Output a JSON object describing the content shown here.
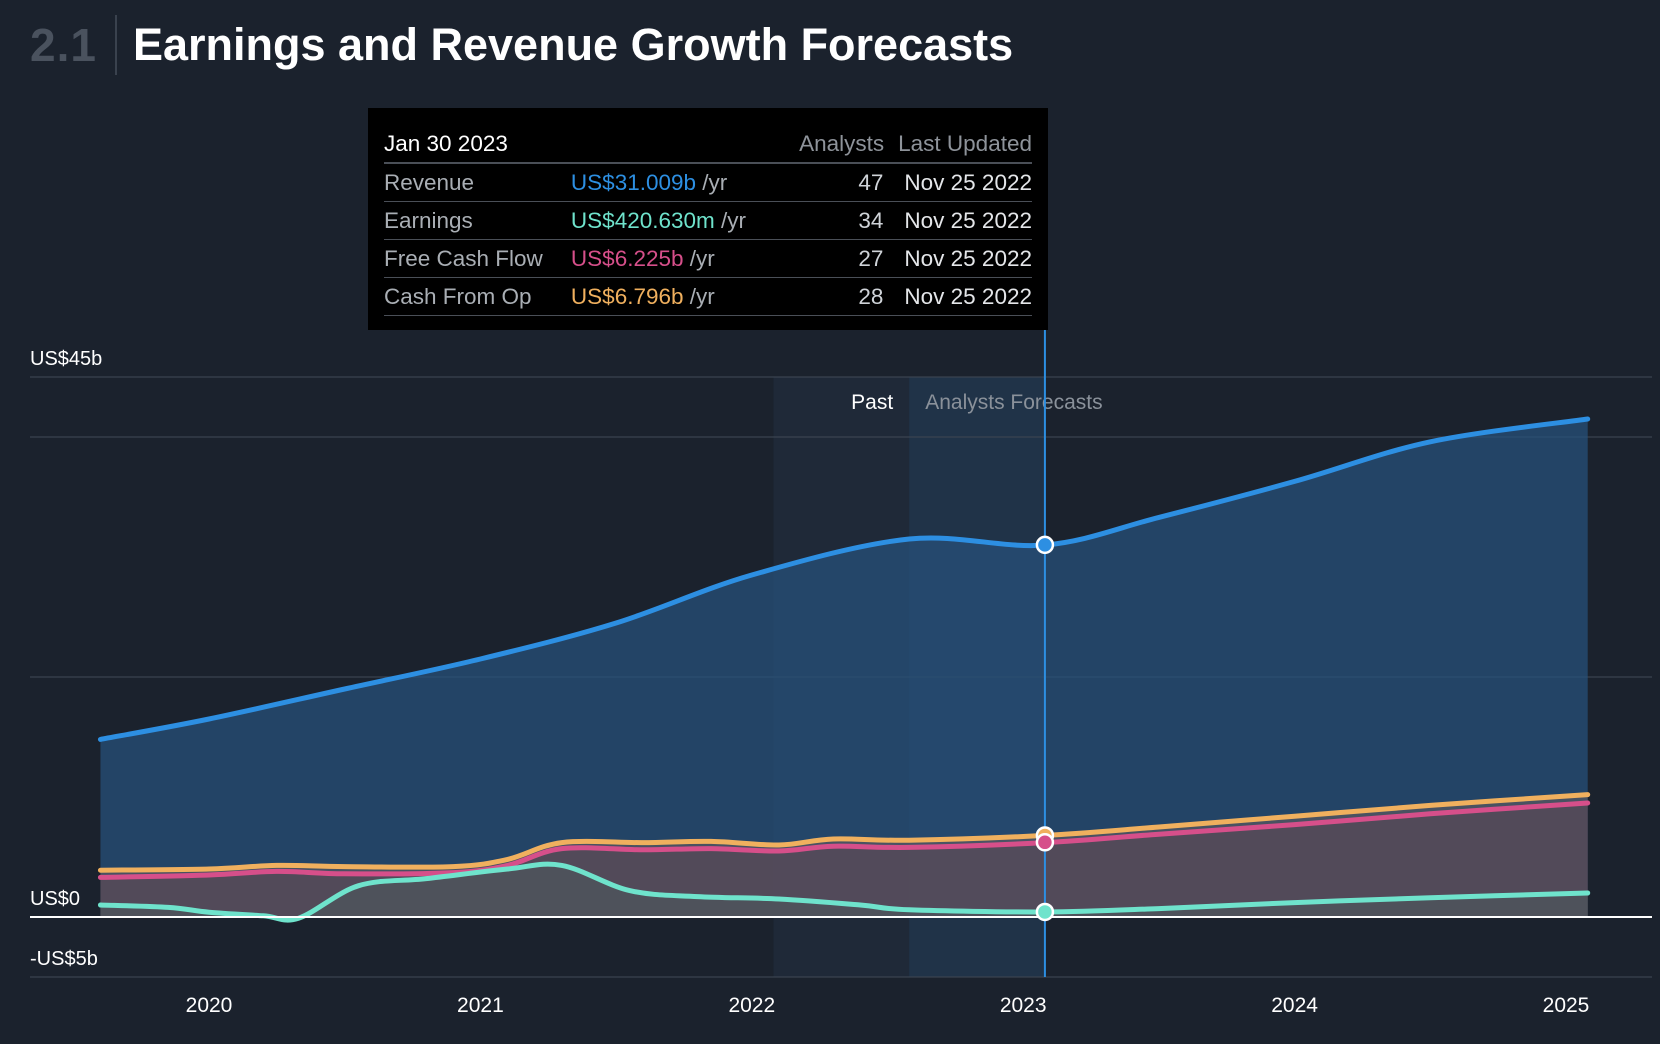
{
  "header": {
    "section_number": "2.1",
    "title": "Earnings and Revenue Growth Forecasts"
  },
  "tooltip": {
    "date": "Jan 30 2023",
    "col_analysts": "Analysts",
    "col_updated": "Last Updated",
    "rows": [
      {
        "name": "Revenue",
        "value": "US$31.009b",
        "unit": " /yr",
        "analysts": "47",
        "updated": "Nov 25 2022",
        "color": "#2d8fe2"
      },
      {
        "name": "Earnings",
        "value": "US$420.630m",
        "unit": " /yr",
        "analysts": "34",
        "updated": "Nov 25 2022",
        "color": "#6fe3cc"
      },
      {
        "name": "Free Cash Flow",
        "value": "US$6.225b",
        "unit": " /yr",
        "analysts": "27",
        "updated": "Nov 25 2022",
        "color": "#d64f8a"
      },
      {
        "name": "Cash From Op",
        "value": "US$6.796b",
        "unit": " /yr",
        "analysts": "28",
        "updated": "Nov 25 2022",
        "color": "#f0b05e"
      }
    ]
  },
  "chart_data": {
    "type": "area",
    "ylim": [
      -5,
      45
    ],
    "y_tick_labels": [
      {
        "value": 45,
        "label": "US$45b"
      },
      {
        "value": 0,
        "label": "US$0"
      },
      {
        "value": -5,
        "label": "-US$5b"
      }
    ],
    "gridlines": [
      40,
      20
    ],
    "x_ticks": [
      {
        "value": 2020,
        "label": "2020"
      },
      {
        "value": 2021,
        "label": "2021"
      },
      {
        "value": 2022,
        "label": "2022"
      },
      {
        "value": 2023,
        "label": "2023"
      },
      {
        "value": 2024,
        "label": "2024"
      },
      {
        "value": 2025,
        "label": "2025"
      }
    ],
    "regions": {
      "past_label": "Past",
      "forecast_label": "Analysts Forecasts",
      "past_shade_start": 2022.08,
      "forecast_start": 2022.58
    },
    "cursor_x": 2023.08,
    "series": [
      {
        "key": "revenue",
        "color": "#2d8fe2",
        "fill": "#27507a",
        "marker_value": 31.009,
        "points": [
          [
            2019.6,
            14.8
          ],
          [
            2020,
            16.5
          ],
          [
            2020.5,
            19
          ],
          [
            2021,
            21.5
          ],
          [
            2021.5,
            24.5
          ],
          [
            2022,
            28.5
          ],
          [
            2022.58,
            31.5
          ],
          [
            2023.08,
            31.0
          ],
          [
            2023.5,
            33.3
          ],
          [
            2024,
            36.3
          ],
          [
            2024.5,
            39.6
          ],
          [
            2025.08,
            41.5
          ]
        ]
      },
      {
        "key": "cash_from_op",
        "color": "#f0b05e",
        "fill": "#6a5f5c",
        "marker_value": 6.796,
        "points": [
          [
            2019.6,
            3.9
          ],
          [
            2020,
            4.0
          ],
          [
            2020.25,
            4.3
          ],
          [
            2020.5,
            4.2
          ],
          [
            2020.9,
            4.2
          ],
          [
            2021.1,
            4.8
          ],
          [
            2021.3,
            6.2
          ],
          [
            2021.6,
            6.2
          ],
          [
            2021.85,
            6.3
          ],
          [
            2022.1,
            6.0
          ],
          [
            2022.3,
            6.5
          ],
          [
            2022.58,
            6.4
          ],
          [
            2023.08,
            6.8
          ],
          [
            2023.5,
            7.5
          ],
          [
            2024,
            8.4
          ],
          [
            2024.5,
            9.3
          ],
          [
            2025.08,
            10.2
          ]
        ]
      },
      {
        "key": "free_cash_flow",
        "color": "#d64f8a",
        "fill": "#5a4453",
        "marker_value": 6.225,
        "points": [
          [
            2019.6,
            3.3
          ],
          [
            2020,
            3.5
          ],
          [
            2020.25,
            3.8
          ],
          [
            2020.5,
            3.6
          ],
          [
            2020.9,
            3.7
          ],
          [
            2021.1,
            4.3
          ],
          [
            2021.3,
            5.7
          ],
          [
            2021.6,
            5.6
          ],
          [
            2021.85,
            5.7
          ],
          [
            2022.1,
            5.5
          ],
          [
            2022.3,
            5.9
          ],
          [
            2022.58,
            5.8
          ],
          [
            2023.08,
            6.2
          ],
          [
            2023.5,
            6.9
          ],
          [
            2024,
            7.7
          ],
          [
            2024.5,
            8.6
          ],
          [
            2025.08,
            9.5
          ]
        ]
      },
      {
        "key": "earnings",
        "color": "#6fe3cc",
        "fill": "#4a5a5c",
        "marker_value": 0.421,
        "points": [
          [
            2019.6,
            1.0
          ],
          [
            2019.85,
            0.8
          ],
          [
            2020,
            0.4
          ],
          [
            2020.2,
            0.1
          ],
          [
            2020.33,
            -0.1
          ],
          [
            2020.55,
            2.6
          ],
          [
            2020.8,
            3.2
          ],
          [
            2021.1,
            4.0
          ],
          [
            2021.3,
            4.3
          ],
          [
            2021.55,
            2.2
          ],
          [
            2021.8,
            1.7
          ],
          [
            2022.1,
            1.5
          ],
          [
            2022.4,
            1.0
          ],
          [
            2022.58,
            0.6
          ],
          [
            2023.08,
            0.42
          ],
          [
            2023.5,
            0.7
          ],
          [
            2024,
            1.2
          ],
          [
            2024.5,
            1.6
          ],
          [
            2025.08,
            2.0
          ]
        ]
      }
    ]
  }
}
